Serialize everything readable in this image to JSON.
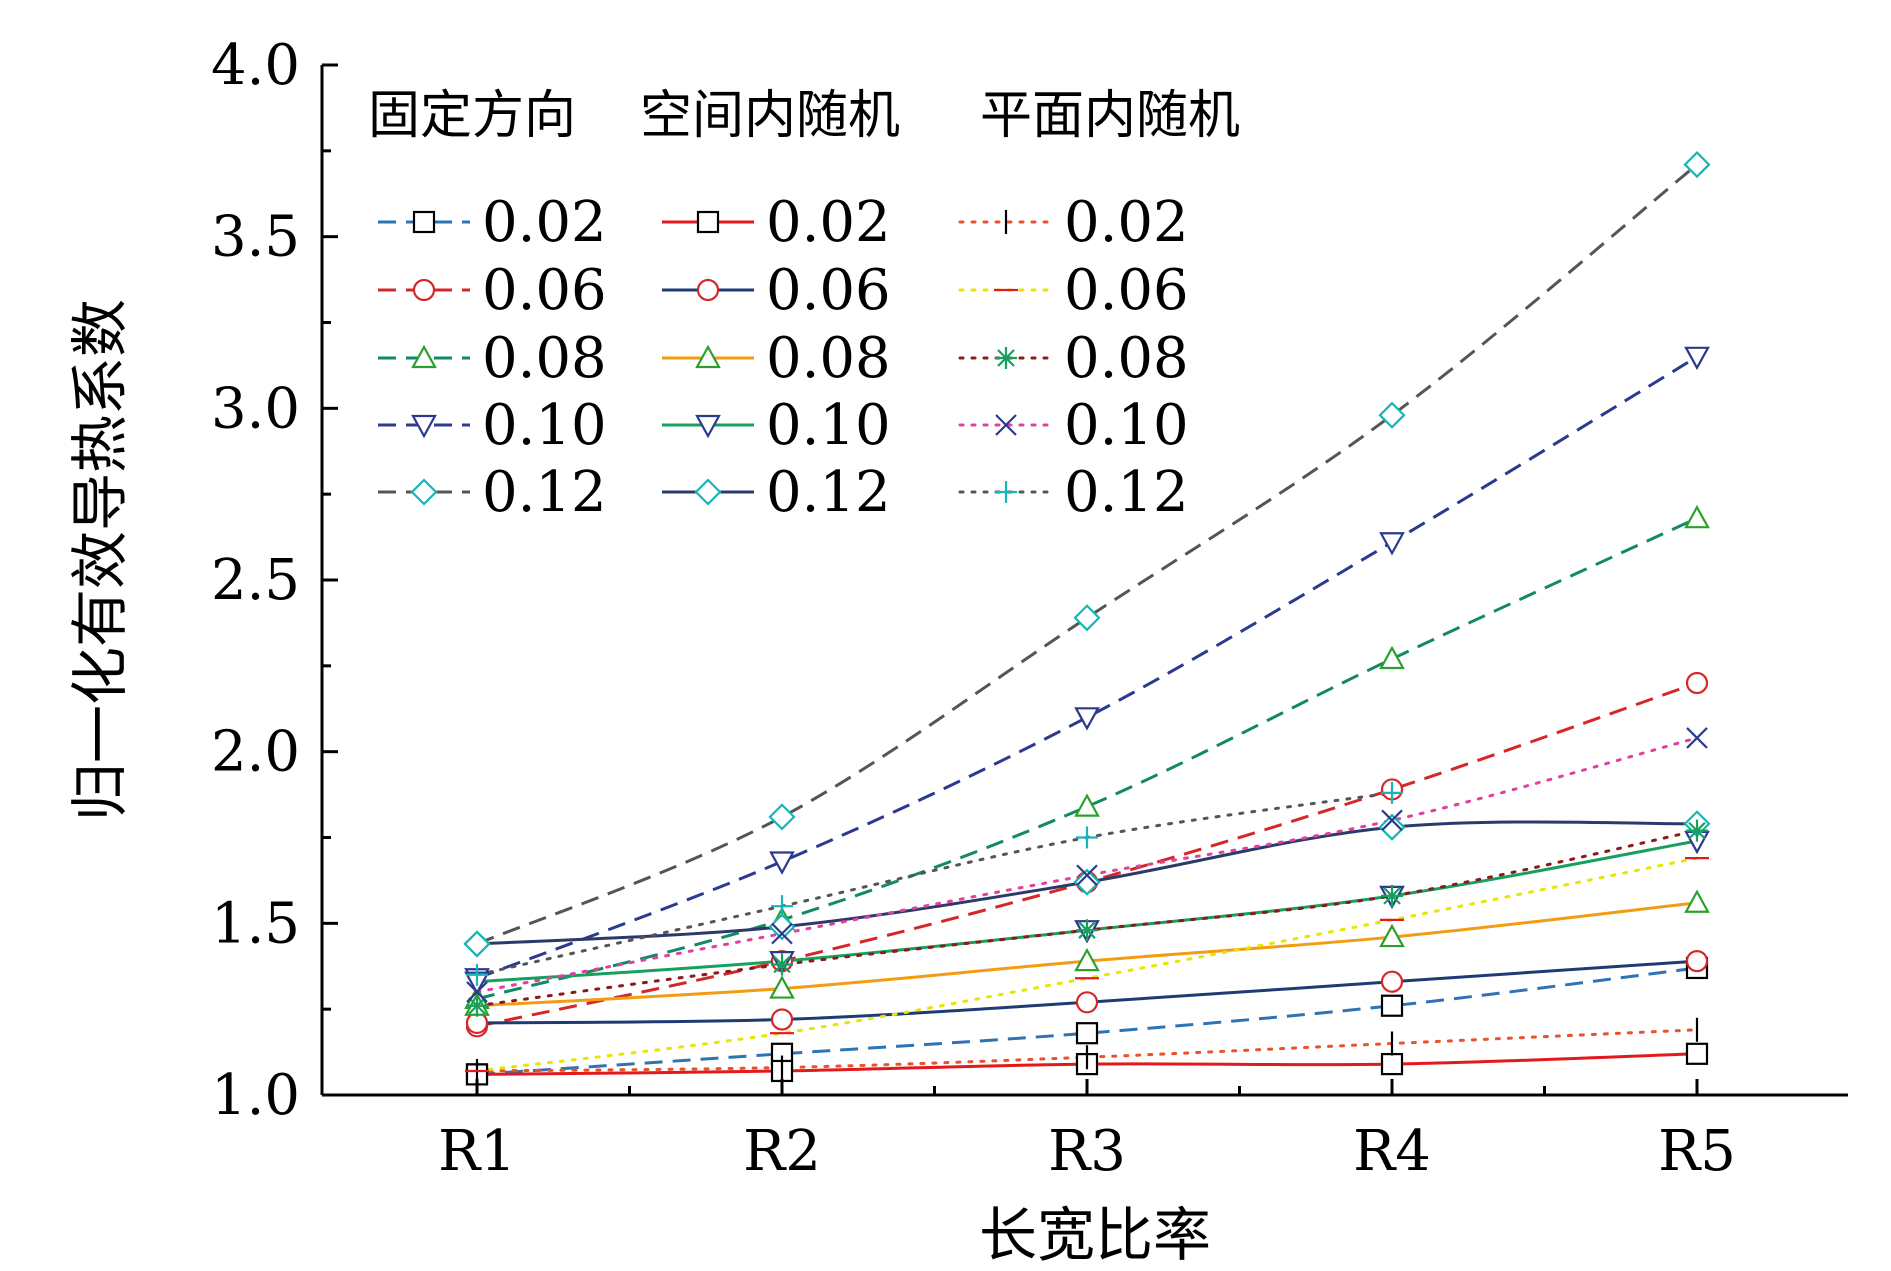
{
  "chart_data": {
    "type": "line",
    "title": "",
    "xlabel": "长宽比率",
    "ylabel": "归一化有效导热系数",
    "categories": [
      "R1",
      "R2",
      "R3",
      "R4",
      "R5"
    ],
    "ylim": [
      1.0,
      4.0
    ],
    "yticks": [
      "1.0",
      "1.5",
      "2.0",
      "2.5",
      "3.0",
      "3.5",
      "4.0"
    ],
    "grid": false,
    "legend_position": "top-left",
    "legend_groups": [
      "固定方向",
      "空间内随机",
      "平面内随机"
    ],
    "series": [
      {
        "group": "固定方向",
        "name": "0.02",
        "color": "#2e74b5",
        "line": "dashed",
        "marker": "square",
        "marker_color": "#000000",
        "values": [
          1.06,
          1.12,
          1.18,
          1.26,
          1.37
        ]
      },
      {
        "group": "固定方向",
        "name": "0.06",
        "color": "#d62728",
        "line": "dashed",
        "marker": "circle",
        "marker_color": "#d62728",
        "values": [
          1.2,
          1.39,
          1.62,
          1.89,
          2.2
        ]
      },
      {
        "group": "固定方向",
        "name": "0.08",
        "color": "#138a63",
        "line": "dashed",
        "marker": "triangle-up",
        "marker_color": "#2ca02c",
        "values": [
          1.28,
          1.51,
          1.84,
          2.27,
          2.68
        ]
      },
      {
        "group": "固定方向",
        "name": "0.10",
        "color": "#2b3a8f",
        "line": "dashed",
        "marker": "triangle-down",
        "marker_color": "#2b3a8f",
        "values": [
          1.34,
          1.68,
          2.1,
          2.61,
          3.15
        ]
      },
      {
        "group": "固定方向",
        "name": "0.12",
        "color": "#555555",
        "line": "dashed",
        "marker": "diamond",
        "marker_color": "#17b5b5",
        "values": [
          1.44,
          1.81,
          2.39,
          2.98,
          3.71
        ]
      },
      {
        "group": "空间内随机",
        "name": "0.02",
        "color": "#e31a1c",
        "line": "solid",
        "marker": "square",
        "marker_color": "#000000",
        "values": [
          1.06,
          1.07,
          1.09,
          1.09,
          1.12
        ]
      },
      {
        "group": "空间内随机",
        "name": "0.06",
        "color": "#1f3b73",
        "line": "solid",
        "marker": "circle",
        "marker_color": "#d62728",
        "values": [
          1.21,
          1.22,
          1.27,
          1.33,
          1.39
        ]
      },
      {
        "group": "空间内随机",
        "name": "0.08",
        "color": "#f39c12",
        "line": "solid",
        "marker": "triangle-up",
        "marker_color": "#2ca02c",
        "values": [
          1.26,
          1.31,
          1.39,
          1.46,
          1.56
        ]
      },
      {
        "group": "空间内随机",
        "name": "0.10",
        "color": "#17a05d",
        "line": "solid",
        "marker": "triangle-down",
        "marker_color": "#2b3a8f",
        "values": [
          1.33,
          1.39,
          1.48,
          1.58,
          1.74
        ]
      },
      {
        "group": "空间内随机",
        "name": "0.12",
        "color": "#2b3a6b",
        "line": "solid",
        "marker": "diamond",
        "marker_color": "#17b5b5",
        "values": [
          1.44,
          1.49,
          1.62,
          1.78,
          1.79
        ]
      },
      {
        "group": "平面内随机",
        "name": "0.02",
        "color": "#e8522c",
        "line": "dotted",
        "marker": "vbar",
        "marker_color": "#000000",
        "values": [
          1.07,
          1.08,
          1.11,
          1.15,
          1.19
        ]
      },
      {
        "group": "平面内随机",
        "name": "0.06",
        "color": "#e6e600",
        "line": "dotted",
        "marker": "hbar",
        "marker_color": "#e31a1c",
        "values": [
          1.07,
          1.18,
          1.34,
          1.51,
          1.69
        ]
      },
      {
        "group": "平面内随机",
        "name": "0.08",
        "color": "#8b1a1a",
        "line": "dotted",
        "marker": "asterisk",
        "marker_color": "#17a05d",
        "values": [
          1.26,
          1.38,
          1.48,
          1.58,
          1.77
        ]
      },
      {
        "group": "平面内随机",
        "name": "0.10",
        "color": "#e040a0",
        "line": "dotted",
        "marker": "x",
        "marker_color": "#2b3a8f",
        "values": [
          1.3,
          1.47,
          1.64,
          1.8,
          2.04
        ]
      },
      {
        "group": "平面内随机",
        "name": "0.12",
        "color": "#555555",
        "line": "dotted",
        "marker": "plus",
        "marker_color": "#17b5b5",
        "values": [
          1.35,
          1.55,
          1.75,
          1.88,
          null
        ]
      }
    ]
  }
}
